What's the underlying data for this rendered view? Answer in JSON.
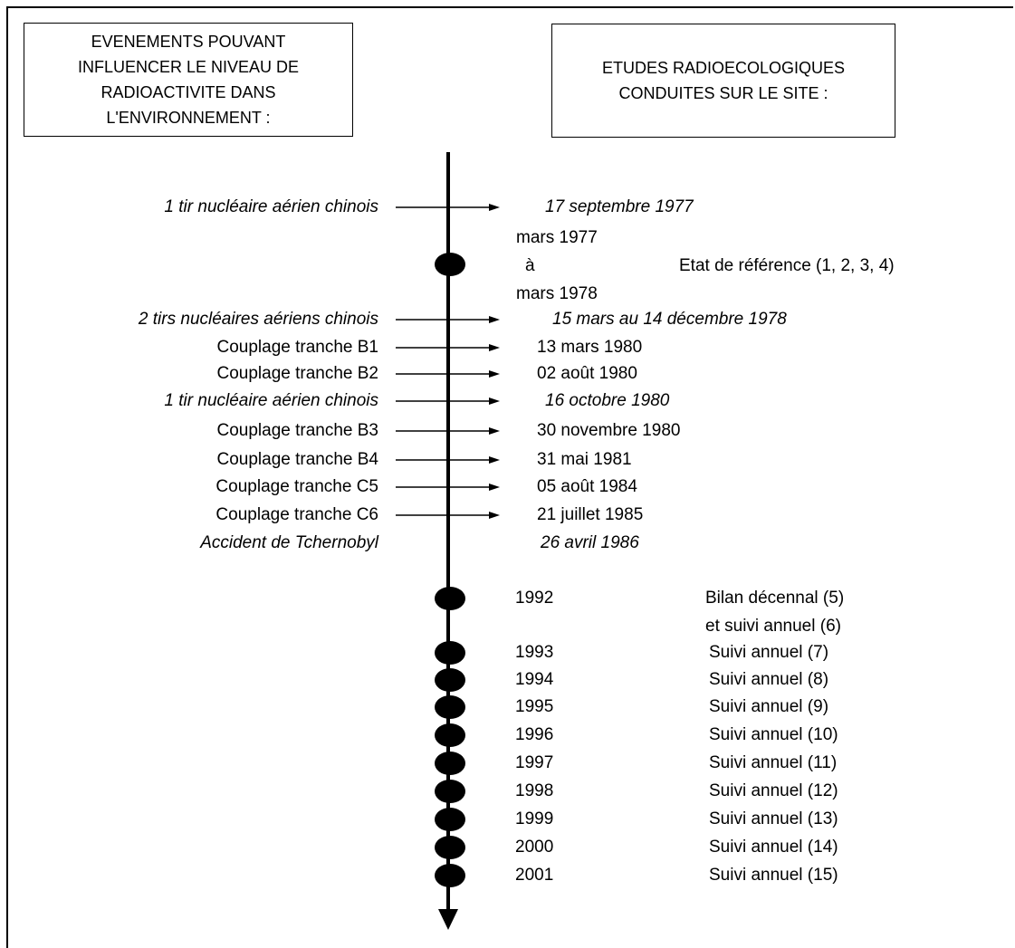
{
  "left_box": {
    "lines": [
      "EVENEMENTS POUVANT",
      "INFLUENCER LE NIVEAU DE",
      "RADIOACTIVITE DANS",
      "L'ENVIRONNEMENT :"
    ]
  },
  "right_box": {
    "lines": [
      "ETUDES RADIOECOLOGIQUES",
      "CONDUITES SUR LE SITE :"
    ]
  },
  "events": [
    {
      "label": "1 tir nucléaire aérien chinois",
      "date": "17 septembre 1977",
      "italic": true
    },
    {
      "label": "2 tirs nucléaires aériens chinois",
      "date": "15 mars au 14 décembre 1978",
      "italic": true
    },
    {
      "label": "Couplage tranche B1",
      "date": "13 mars 1980",
      "italic": false
    },
    {
      "label": "Couplage tranche B2",
      "date": "02 août 1980",
      "italic": false
    },
    {
      "label": "1 tir nucléaire aérien chinois",
      "date": "16 octobre 1980",
      "italic": true
    },
    {
      "label": "Couplage tranche B3",
      "date": "30 novembre 1980",
      "italic": false
    },
    {
      "label": "Couplage tranche B4",
      "date": "31 mai 1981",
      "italic": false
    },
    {
      "label": "Couplage tranche C5",
      "date": "05 août 1984",
      "italic": false
    },
    {
      "label": "Couplage tranche C6",
      "date": "21 juillet 1985",
      "italic": false
    },
    {
      "label": "Accident de Tchernobyl",
      "date": "26 avril 1986",
      "italic": true
    }
  ],
  "reference_study": {
    "date_start": "mars 1977",
    "connector": "à",
    "date_end": "mars 1978",
    "label": "Etat de référence (1, 2, 3, 4)"
  },
  "studies": [
    {
      "year": "1992",
      "label": "Bilan décennal (5)",
      "label2": "et suivi annuel (6)"
    },
    {
      "year": "1993",
      "label": "Suivi annuel (7)"
    },
    {
      "year": "1994",
      "label": "Suivi annuel (8)"
    },
    {
      "year": "1995",
      "label": "Suivi annuel (9)"
    },
    {
      "year": "1996",
      "label": "Suivi annuel (10)"
    },
    {
      "year": "1997",
      "label": "Suivi annuel (11)"
    },
    {
      "year": "1998",
      "label": "Suivi annuel (12)"
    },
    {
      "year": "1999",
      "label": "Suivi annuel (13)"
    },
    {
      "year": "2000",
      "label": "Suivi annuel (14)"
    },
    {
      "year": "2001",
      "label": "Suivi annuel (15)"
    }
  ]
}
